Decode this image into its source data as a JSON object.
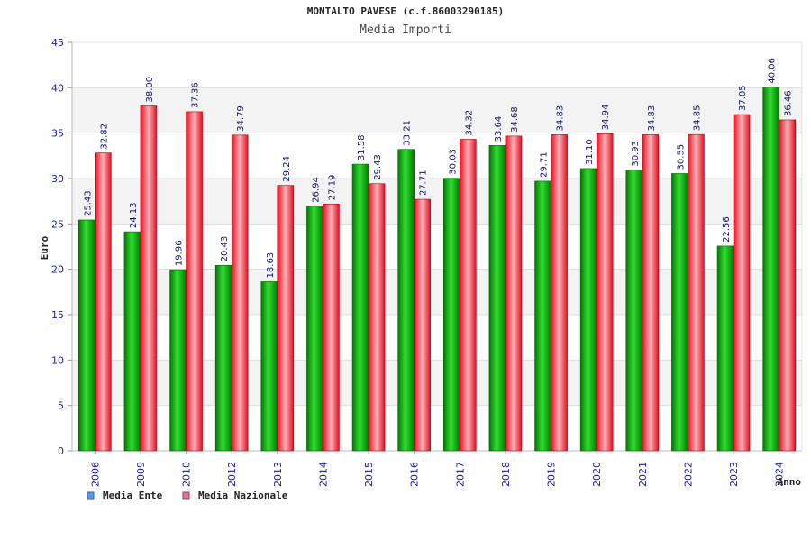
{
  "chart_data": {
    "type": "bar",
    "title": "MONTALTO PAVESE (c.f.86003290185)",
    "subtitle": "Media Importi",
    "xlabel": "Anno",
    "ylabel": "Euro",
    "ylim": [
      0,
      45
    ],
    "yticks": [
      0,
      5,
      10,
      15,
      20,
      25,
      30,
      35,
      40,
      45
    ],
    "categories": [
      "2006",
      "2009",
      "2010",
      "2012",
      "2013",
      "2014",
      "2015",
      "2016",
      "2017",
      "2018",
      "2019",
      "2020",
      "2021",
      "2022",
      "2023",
      "2024"
    ],
    "series": [
      {
        "name": "Media Ente",
        "color": "#22bb22",
        "legend_color": "#5599ee",
        "values": [
          25.43,
          24.13,
          19.96,
          20.43,
          18.63,
          26.94,
          31.58,
          33.21,
          30.03,
          33.64,
          29.71,
          31.1,
          30.93,
          30.55,
          22.56,
          40.06
        ],
        "labels": [
          "25.43",
          "24.13",
          "19.96",
          "20.43",
          "18.63",
          "26.94",
          "31.58",
          "33.21",
          "30.03",
          "33.64",
          "29.71",
          "31.10",
          "30.93",
          "30.55",
          "22.56",
          "40.06"
        ]
      },
      {
        "name": "Media Nazionale",
        "color": "#ee3344",
        "legend_color": "#dd7799",
        "values": [
          32.82,
          38.0,
          37.36,
          34.79,
          29.24,
          27.19,
          29.43,
          27.71,
          34.32,
          34.68,
          34.83,
          34.94,
          34.83,
          34.85,
          37.05,
          36.46
        ],
        "labels": [
          "32.82",
          "38.00",
          "37.36",
          "34.79",
          "29.24",
          "27.19",
          "29.43",
          "27.71",
          "34.32",
          "34.68",
          "34.83",
          "34.94",
          "34.83",
          "34.85",
          "37.05",
          "36.46"
        ]
      }
    ],
    "legend_position": "bottom-left",
    "grid": true
  }
}
